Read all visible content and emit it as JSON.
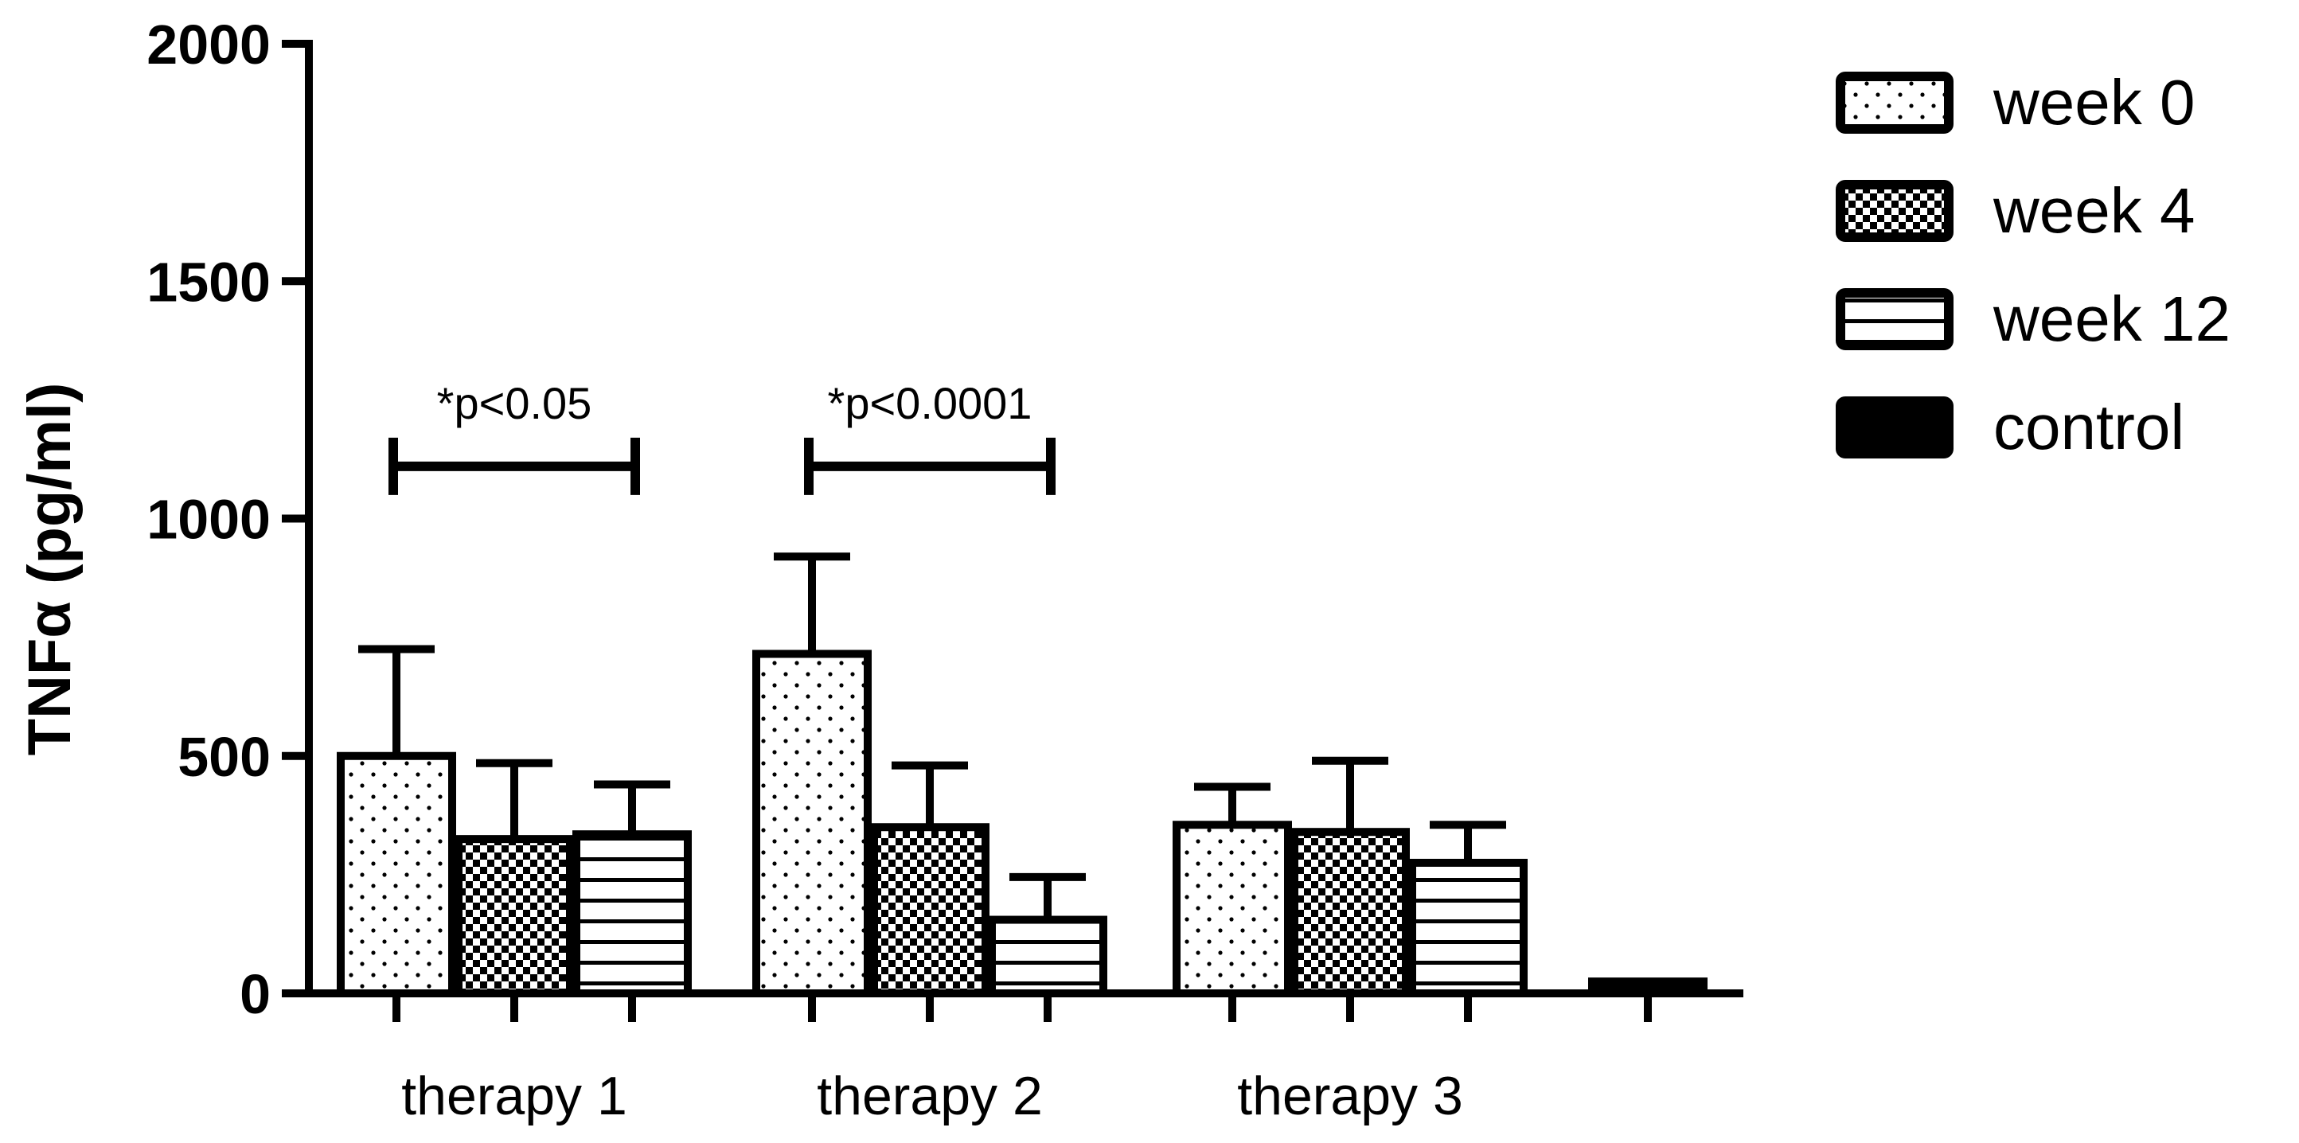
{
  "chart_data": {
    "type": "bar",
    "ylabel": "TNFα (pg/ml)",
    "xlabel": "",
    "ylim": [
      0,
      2000
    ],
    "yticks": [
      0,
      500,
      1000,
      1500,
      2000
    ],
    "grid": false,
    "legend_position": "top-right",
    "groups": [
      {
        "label": "therapy 1",
        "bars": [
          {
            "series": "week 0",
            "value": 500,
            "error": 225
          },
          {
            "series": "week 4",
            "value": 325,
            "error": 160
          },
          {
            "series": "week 12",
            "value": 335,
            "error": 105
          }
        ]
      },
      {
        "label": "therapy 2",
        "bars": [
          {
            "series": "week 0",
            "value": 715,
            "error": 205
          },
          {
            "series": "week 4",
            "value": 350,
            "error": 130
          },
          {
            "series": "week 12",
            "value": 155,
            "error": 90
          }
        ]
      },
      {
        "label": "therapy 3",
        "bars": [
          {
            "series": "week 0",
            "value": 355,
            "error": 80
          },
          {
            "series": "week 4",
            "value": 340,
            "error": 150
          },
          {
            "series": "week 12",
            "value": 275,
            "error": 80
          }
        ]
      },
      {
        "label": "",
        "bars": [
          {
            "series": "control",
            "value": 25,
            "error": 0
          }
        ]
      }
    ],
    "legend": [
      {
        "name": "week 0",
        "pattern": "dots"
      },
      {
        "name": "week 4",
        "pattern": "checker"
      },
      {
        "name": "week 12",
        "pattern": "hlines"
      },
      {
        "name": "control",
        "pattern": "solid"
      }
    ],
    "annotations": [
      {
        "text": "*p<0.05",
        "group": 0,
        "bracket_value": 1110
      },
      {
        "text": "*p<0.0001",
        "group": 1,
        "bracket_value": 1110
      }
    ]
  }
}
